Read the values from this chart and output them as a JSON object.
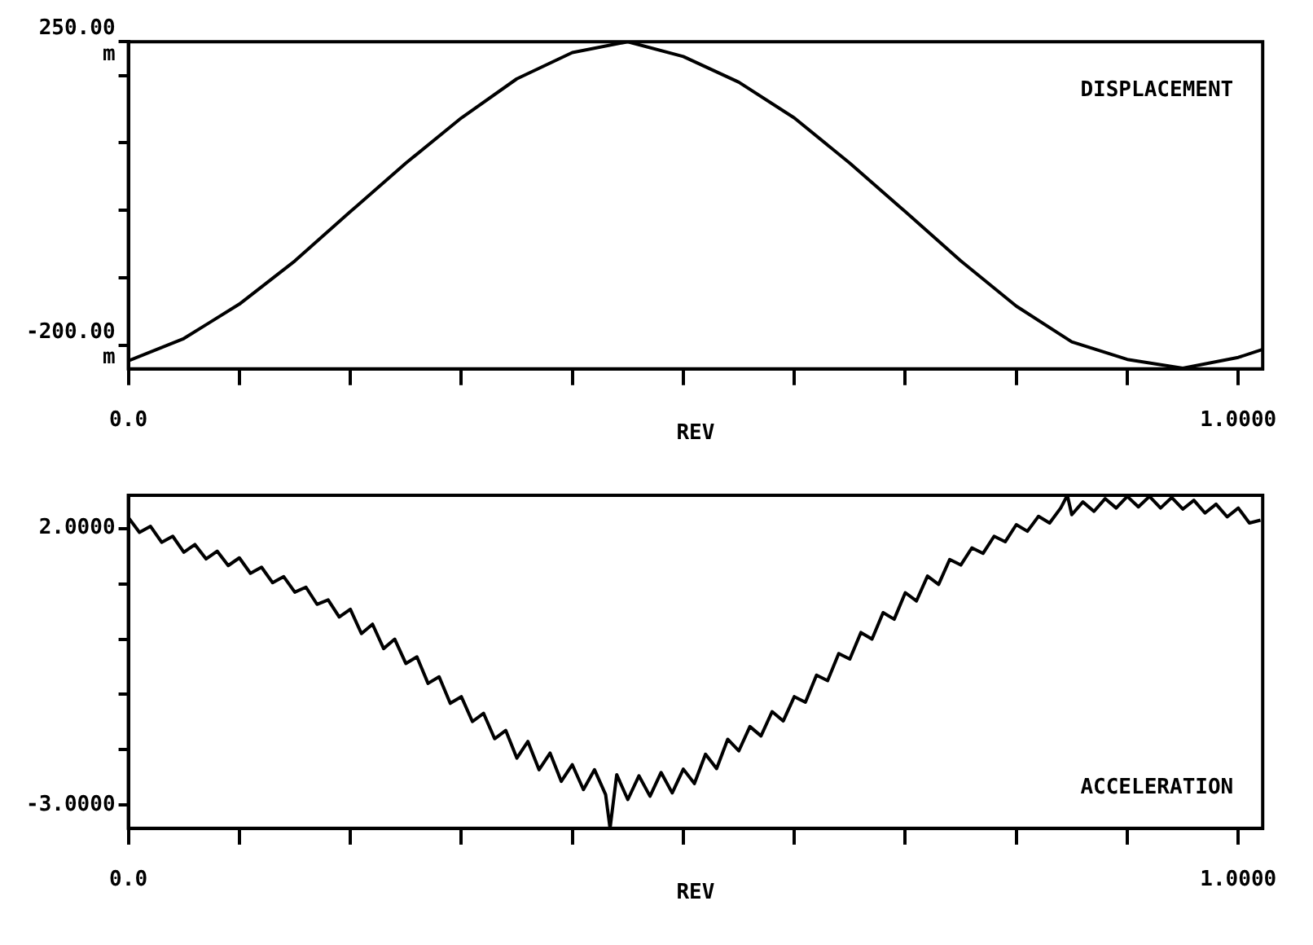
{
  "chart_data": [
    {
      "type": "line",
      "xlabel": "REV",
      "annotations": [
        "DISPLACEMENT"
      ],
      "color": "#000000",
      "marker": "none",
      "grid": false,
      "x": [
        0,
        0.05,
        0.1,
        0.15,
        0.2,
        0.25,
        0.3,
        0.35,
        0.4,
        0.45,
        0.5,
        0.55,
        0.6,
        0.65,
        0.7,
        0.75,
        0.8,
        0.85,
        0.9,
        0.95,
        1.0,
        1.022
      ],
      "values": [
        -223,
        -190,
        -139,
        -75,
        -2,
        70,
        137,
        195,
        234,
        250,
        228,
        190,
        137,
        70,
        -2,
        -75,
        -142,
        -195,
        -221,
        -234,
        -218,
        -206
      ],
      "xlim": [
        0,
        1.022
      ],
      "xticks": [
        {
          "value": 0,
          "label": "0.0"
        },
        {
          "value": 0.1,
          "label": null
        },
        {
          "value": 0.2,
          "label": null
        },
        {
          "value": 0.3,
          "label": null
        },
        {
          "value": 0.4,
          "label": null
        },
        {
          "value": 0.5,
          "label": null
        },
        {
          "value": 0.6,
          "label": null
        },
        {
          "value": 0.7,
          "label": null
        },
        {
          "value": 0.8,
          "label": null
        },
        {
          "value": 0.9,
          "label": null
        },
        {
          "value": 1,
          "label": "1.0000"
        }
      ],
      "ylim": [
        -235,
        250
      ],
      "yticks": [
        {
          "value": -200,
          "label": "-200.00\nm"
        },
        {
          "value": -100,
          "label": null
        },
        {
          "value": 0,
          "label": null
        },
        {
          "value": 100,
          "label": null
        },
        {
          "value": 200,
          "label": null
        },
        {
          "value": 250,
          "label": "250.00\nm"
        }
      ]
    },
    {
      "type": "line",
      "xlabel": "REV",
      "annotations": [
        "ACCELERATION"
      ],
      "color": "#000000",
      "marker": "none",
      "grid": false,
      "x": [
        0,
        0.01,
        0.02,
        0.03,
        0.04,
        0.05,
        0.06,
        0.07,
        0.08,
        0.09,
        0.1,
        0.11,
        0.12,
        0.13,
        0.14,
        0.15,
        0.16,
        0.17,
        0.18,
        0.19,
        0.2,
        0.21,
        0.22,
        0.23,
        0.24,
        0.25,
        0.26,
        0.27,
        0.28,
        0.29,
        0.3,
        0.31,
        0.32,
        0.33,
        0.34,
        0.35,
        0.36,
        0.37,
        0.38,
        0.39,
        0.4,
        0.41,
        0.42,
        0.43,
        0.434,
        0.44,
        0.45,
        0.46,
        0.47,
        0.48,
        0.49,
        0.5,
        0.51,
        0.52,
        0.53,
        0.54,
        0.55,
        0.56,
        0.57,
        0.58,
        0.59,
        0.6,
        0.61,
        0.62,
        0.63,
        0.64,
        0.65,
        0.66,
        0.67,
        0.68,
        0.69,
        0.7,
        0.71,
        0.72,
        0.73,
        0.74,
        0.75,
        0.76,
        0.77,
        0.78,
        0.79,
        0.8,
        0.81,
        0.82,
        0.83,
        0.84,
        0.846,
        0.85,
        0.86,
        0.87,
        0.88,
        0.89,
        0.9,
        0.91,
        0.92,
        0.93,
        0.94,
        0.95,
        0.96,
        0.97,
        0.98,
        0.99,
        1.0,
        1.01,
        1.02
      ],
      "values": [
        2.2,
        1.93,
        2.04,
        1.75,
        1.86,
        1.57,
        1.71,
        1.45,
        1.59,
        1.33,
        1.47,
        1.19,
        1.3,
        1.02,
        1.13,
        0.85,
        0.94,
        0.63,
        0.71,
        0.4,
        0.54,
        0.1,
        0.27,
        -0.17,
        0,
        -0.44,
        -0.32,
        -0.8,
        -0.68,
        -1.16,
        -1.04,
        -1.49,
        -1.34,
        -1.8,
        -1.65,
        -2.15,
        -1.85,
        -2.36,
        -2.06,
        -2.57,
        -2.27,
        -2.72,
        -2.36,
        -2.81,
        -3.42,
        -2.45,
        -2.9,
        -2.47,
        -2.84,
        -2.41,
        -2.78,
        -2.35,
        -2.61,
        -2.08,
        -2.34,
        -1.81,
        -2.02,
        -1.58,
        -1.75,
        -1.31,
        -1.48,
        -1.04,
        -1.14,
        -0.65,
        -0.75,
        -0.26,
        -0.36,
        0.12,
        0,
        0.48,
        0.36,
        0.84,
        0.69,
        1.14,
        0.99,
        1.44,
        1.34,
        1.65,
        1.55,
        1.86,
        1.76,
        2.07,
        1.95,
        2.22,
        2.1,
        2.37,
        2.6,
        2.25,
        2.48,
        2.31,
        2.54,
        2.37,
        2.58,
        2.39,
        2.58,
        2.37,
        2.56,
        2.35,
        2.51,
        2.28,
        2.44,
        2.21,
        2.37,
        2.1,
        2.15
      ],
      "xlim": [
        0,
        1.022
      ],
      "xticks": [
        {
          "value": 0,
          "label": "0.0"
        },
        {
          "value": 0.1,
          "label": null
        },
        {
          "value": 0.2,
          "label": null
        },
        {
          "value": 0.3,
          "label": null
        },
        {
          "value": 0.4,
          "label": null
        },
        {
          "value": 0.5,
          "label": null
        },
        {
          "value": 0.6,
          "label": null
        },
        {
          "value": 0.7,
          "label": null
        },
        {
          "value": 0.8,
          "label": null
        },
        {
          "value": 0.9,
          "label": null
        },
        {
          "value": 1,
          "label": "1.0000"
        }
      ],
      "ylim": [
        -3.42,
        2.6
      ],
      "yticks": [
        {
          "value": -3,
          "label": "-3.0000"
        },
        {
          "value": -2,
          "label": null
        },
        {
          "value": -1,
          "label": null
        },
        {
          "value": 0,
          "label": null
        },
        {
          "value": 1,
          "label": null
        },
        {
          "value": 2,
          "label": "2.0000"
        }
      ]
    }
  ]
}
